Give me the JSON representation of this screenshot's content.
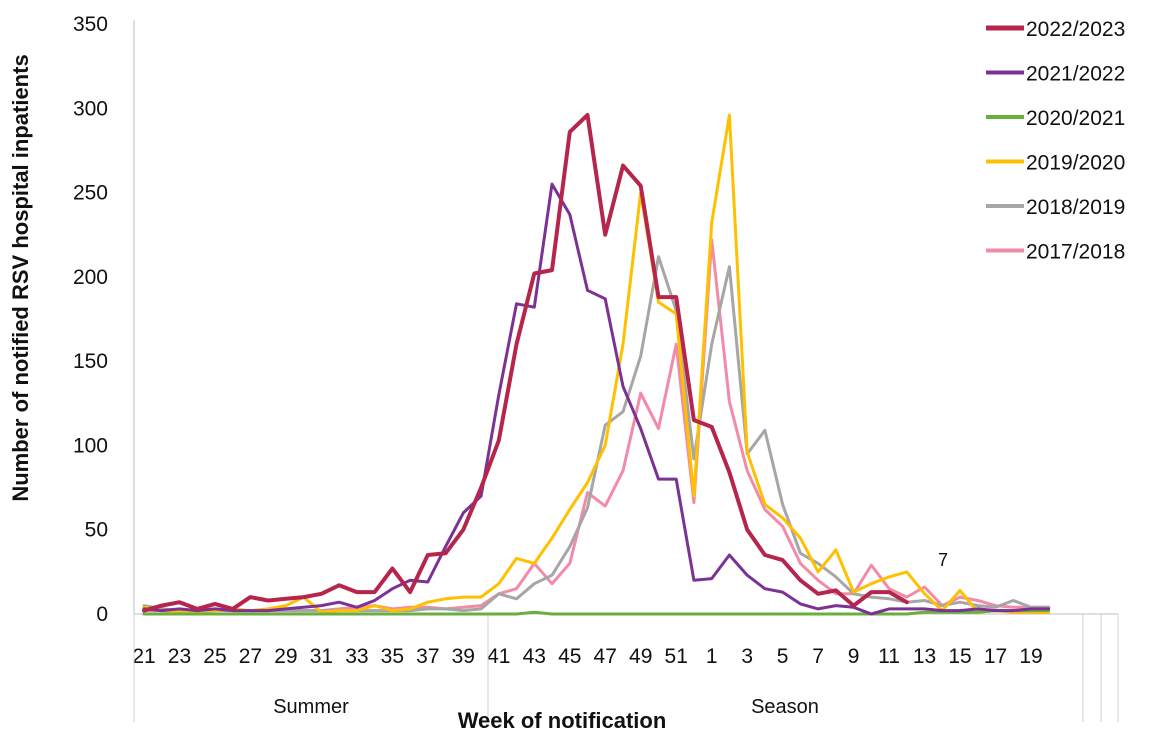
{
  "chart_data": {
    "type": "line",
    "xlabel": "Week of notification",
    "ylabel": "Number of notified RSV hospital inpatients",
    "ylim": [
      0,
      350
    ],
    "yticks": [
      0,
      50,
      100,
      150,
      200,
      250,
      300,
      350
    ],
    "x_tick_labels": [
      "21",
      "23",
      "25",
      "27",
      "29",
      "31",
      "33",
      "35",
      "37",
      "39",
      "41",
      "43",
      "45",
      "47",
      "49",
      "51",
      "1",
      "3",
      "5",
      "7",
      "9",
      "11",
      "13",
      "15",
      "17",
      "19"
    ],
    "weeks": [
      21,
      22,
      23,
      24,
      25,
      26,
      27,
      28,
      29,
      30,
      31,
      32,
      33,
      34,
      35,
      36,
      37,
      38,
      39,
      40,
      41,
      42,
      43,
      44,
      45,
      46,
      47,
      48,
      49,
      50,
      51,
      52,
      1,
      2,
      3,
      4,
      5,
      6,
      7,
      8,
      9,
      10,
      11,
      12,
      13,
      14,
      15,
      16,
      17,
      18,
      19,
      20
    ],
    "region_labels": [
      "Summer",
      "Season"
    ],
    "annotation": "7",
    "legend_position": "top-right",
    "grid": false,
    "series": [
      {
        "name": "2022/2023",
        "color": "#B5254C",
        "width": 4,
        "values": [
          2,
          5,
          7,
          3,
          6,
          3,
          10,
          8,
          9,
          10,
          12,
          17,
          13,
          13,
          27,
          13,
          35,
          36,
          50,
          75,
          103,
          160,
          202,
          204,
          286,
          296,
          225,
          266,
          254,
          188,
          188,
          115,
          111,
          84,
          50,
          35,
          32,
          20,
          12,
          14,
          5,
          13,
          13,
          7,
          null,
          null,
          null,
          null,
          null,
          null,
          null,
          null
        ]
      },
      {
        "name": "2021/2022",
        "color": "#7B3294",
        "width": 3,
        "values": [
          3,
          2,
          3,
          2,
          3,
          2,
          2,
          2,
          3,
          4,
          5,
          7,
          4,
          8,
          15,
          20,
          19,
          40,
          60,
          70,
          130,
          184,
          182,
          255,
          237,
          192,
          187,
          135,
          110,
          80,
          80,
          20,
          21,
          35,
          23,
          15,
          13,
          6,
          3,
          5,
          4,
          0,
          3,
          3,
          3,
          2,
          2,
          3,
          2,
          2,
          3,
          3
        ]
      },
      {
        "name": "2020/2021",
        "color": "#6AAF3D",
        "width": 3,
        "values": [
          0,
          0,
          0,
          0,
          0,
          0,
          0,
          0,
          0,
          0,
          0,
          0,
          0,
          0,
          0,
          0,
          0,
          0,
          0,
          0,
          0,
          0,
          1,
          0,
          0,
          0,
          0,
          0,
          0,
          0,
          0,
          0,
          0,
          0,
          0,
          0,
          0,
          0,
          0,
          0,
          0,
          0,
          0,
          0,
          1,
          1,
          1,
          1,
          2,
          2,
          2,
          2
        ]
      },
      {
        "name": "2019/2020",
        "color": "#FFC000",
        "width": 3,
        "values": [
          4,
          2,
          1,
          1,
          2,
          3,
          2,
          3,
          5,
          10,
          1,
          2,
          2,
          5,
          2,
          3,
          7,
          9,
          10,
          10,
          18,
          33,
          30,
          45,
          62,
          78,
          100,
          160,
          250,
          185,
          178,
          70,
          232,
          296,
          96,
          65,
          57,
          45,
          25,
          38,
          13,
          18,
          22,
          25,
          12,
          2,
          14,
          1,
          2,
          1,
          1,
          1
        ]
      },
      {
        "name": "2018/2019",
        "color": "#A6A6A6",
        "width": 3,
        "values": [
          5,
          3,
          2,
          2,
          3,
          2,
          2,
          2,
          2,
          2,
          2,
          2,
          2,
          2,
          2,
          2,
          3,
          3,
          2,
          3,
          12,
          9,
          18,
          23,
          40,
          63,
          112,
          120,
          153,
          212,
          180,
          92,
          160,
          206,
          95,
          109,
          65,
          36,
          30,
          22,
          12,
          10,
          9,
          7,
          8,
          5,
          7,
          5,
          4,
          8,
          4,
          4
        ]
      },
      {
        "name": "2017/2018",
        "color": "#F28BA8",
        "width": 3,
        "values": [
          2,
          2,
          2,
          2,
          2,
          2,
          2,
          2,
          2,
          2,
          2,
          3,
          4,
          5,
          3,
          4,
          4,
          3,
          4,
          5,
          12,
          15,
          30,
          18,
          30,
          72,
          64,
          85,
          131,
          110,
          160,
          66,
          222,
          126,
          85,
          62,
          52,
          30,
          20,
          12,
          12,
          29,
          15,
          10,
          16,
          5,
          10,
          8,
          5,
          4,
          4,
          4
        ]
      }
    ]
  }
}
